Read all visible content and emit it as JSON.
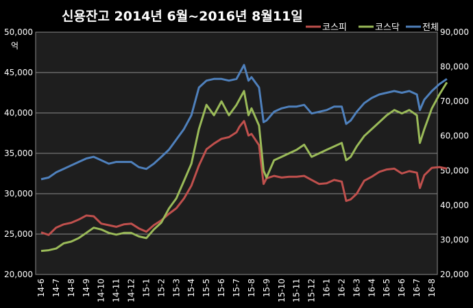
{
  "chart_data": {
    "type": "line",
    "title": "신용잔고 2014년 6월~2016년 8월11일",
    "left_axis": {
      "unit": "억",
      "range": [
        20000,
        50000
      ],
      "ticks": [
        "20,000",
        "25,000",
        "30,000",
        "35,000",
        "40,000",
        "45,000",
        "50,000"
      ]
    },
    "right_axis": {
      "range": [
        20000,
        90000
      ],
      "ticks": [
        "20,000",
        "30,000",
        "40,000",
        "50,000",
        "60,000",
        "70,000",
        "80,000",
        "90,000"
      ]
    },
    "x_ticks": [
      "14-6",
      "14-7",
      "14-8",
      "14-9",
      "14-10",
      "14-11",
      "14-12",
      "15-1",
      "15-2",
      "15-3",
      "15-4",
      "15-5",
      "15-6",
      "15-7",
      "15-8",
      "15-9",
      "15-10",
      "15-11",
      "15-12",
      "16-1",
      "16-2",
      "16-3",
      "16-4",
      "16-5",
      "16-6",
      "16-7",
      "16-8"
    ],
    "grid": true,
    "legend_position": "top-right",
    "series": [
      {
        "name": "코스피",
        "axis": "left",
        "color": "#c0504d",
        "points": [
          [
            0,
            25200
          ],
          [
            0.5,
            24900
          ],
          [
            1,
            25800
          ],
          [
            1.5,
            26200
          ],
          [
            2,
            26400
          ],
          [
            2.5,
            26800
          ],
          [
            3,
            27300
          ],
          [
            3.5,
            27200
          ],
          [
            4,
            26300
          ],
          [
            4.5,
            26100
          ],
          [
            5,
            25900
          ],
          [
            5.5,
            26200
          ],
          [
            6,
            26300
          ],
          [
            6.5,
            25700
          ],
          [
            7,
            25300
          ],
          [
            7.5,
            26100
          ],
          [
            8,
            26700
          ],
          [
            8.5,
            27500
          ],
          [
            9,
            28200
          ],
          [
            9.5,
            29400
          ],
          [
            10,
            31000
          ],
          [
            10.5,
            33500
          ],
          [
            11,
            35500
          ],
          [
            11.5,
            36200
          ],
          [
            12,
            36800
          ],
          [
            12.5,
            37000
          ],
          [
            13,
            37600
          ],
          [
            13.2,
            38300
          ],
          [
            13.5,
            39000
          ],
          [
            13.8,
            37200
          ],
          [
            14,
            37400
          ],
          [
            14.5,
            36000
          ],
          [
            14.8,
            31200
          ],
          [
            15,
            31900
          ],
          [
            15.5,
            32200
          ],
          [
            16,
            32000
          ],
          [
            16.5,
            32100
          ],
          [
            17,
            32100
          ],
          [
            17.5,
            32200
          ],
          [
            18,
            31700
          ],
          [
            18.5,
            31200
          ],
          [
            19,
            31300
          ],
          [
            19.5,
            31700
          ],
          [
            20,
            31500
          ],
          [
            20.3,
            29100
          ],
          [
            20.6,
            29300
          ],
          [
            21,
            30000
          ],
          [
            21.5,
            31600
          ],
          [
            22,
            32100
          ],
          [
            22.5,
            32700
          ],
          [
            23,
            33000
          ],
          [
            23.5,
            33100
          ],
          [
            24,
            32500
          ],
          [
            24.5,
            32800
          ],
          [
            25,
            32600
          ],
          [
            25.2,
            30700
          ],
          [
            25.5,
            32300
          ],
          [
            26,
            33200
          ],
          [
            26.5,
            33300
          ],
          [
            27,
            33100
          ]
        ]
      },
      {
        "name": "코스닥",
        "axis": "right",
        "color": "#9bbb59",
        "points": [
          [
            0,
            26800
          ],
          [
            0.5,
            27000
          ],
          [
            1,
            27500
          ],
          [
            1.5,
            29000
          ],
          [
            2,
            29500
          ],
          [
            2.5,
            30500
          ],
          [
            3,
            32000
          ],
          [
            3.5,
            33500
          ],
          [
            4,
            33000
          ],
          [
            4.5,
            32000
          ],
          [
            5,
            31500
          ],
          [
            5.5,
            32000
          ],
          [
            6,
            32000
          ],
          [
            6.5,
            31000
          ],
          [
            7,
            30500
          ],
          [
            7.5,
            33000
          ],
          [
            8,
            35000
          ],
          [
            8.5,
            39000
          ],
          [
            9,
            42000
          ],
          [
            9.5,
            47000
          ],
          [
            10,
            52000
          ],
          [
            10.5,
            62000
          ],
          [
            11,
            69000
          ],
          [
            11.5,
            66000
          ],
          [
            12,
            70000
          ],
          [
            12.5,
            66000
          ],
          [
            13,
            69000
          ],
          [
            13.5,
            73000
          ],
          [
            13.8,
            66000
          ],
          [
            14,
            68000
          ],
          [
            14.5,
            63000
          ],
          [
            14.8,
            50000
          ],
          [
            15,
            48000
          ],
          [
            15.5,
            53000
          ],
          [
            16,
            54000
          ],
          [
            16.5,
            55000
          ],
          [
            17,
            56000
          ],
          [
            17.5,
            57500
          ],
          [
            18,
            54000
          ],
          [
            18.5,
            55000
          ],
          [
            19,
            56000
          ],
          [
            19.5,
            57000
          ],
          [
            20,
            58000
          ],
          [
            20.3,
            53000
          ],
          [
            20.6,
            54000
          ],
          [
            21,
            57000
          ],
          [
            21.5,
            60000
          ],
          [
            22,
            62000
          ],
          [
            22.5,
            64000
          ],
          [
            23,
            66000
          ],
          [
            23.5,
            67500
          ],
          [
            24,
            66500
          ],
          [
            24.5,
            67500
          ],
          [
            25,
            66000
          ],
          [
            25.2,
            58000
          ],
          [
            25.5,
            62000
          ],
          [
            26,
            68000
          ],
          [
            26.5,
            72000
          ],
          [
            27,
            75500
          ]
        ]
      },
      {
        "name": "전체",
        "axis": "right",
        "color": "#4f81bd",
        "points": [
          [
            0,
            47500
          ],
          [
            0.5,
            48000
          ],
          [
            1,
            49500
          ],
          [
            1.5,
            50500
          ],
          [
            2,
            51500
          ],
          [
            2.5,
            52500
          ],
          [
            3,
            53500
          ],
          [
            3.5,
            54000
          ],
          [
            4,
            53000
          ],
          [
            4.5,
            52000
          ],
          [
            5,
            52500
          ],
          [
            5.5,
            52500
          ],
          [
            6,
            52500
          ],
          [
            6.5,
            51000
          ],
          [
            7,
            50500
          ],
          [
            7.5,
            52000
          ],
          [
            8,
            54000
          ],
          [
            8.5,
            56000
          ],
          [
            9,
            59000
          ],
          [
            9.5,
            62000
          ],
          [
            10,
            66000
          ],
          [
            10.5,
            74000
          ],
          [
            11,
            76000
          ],
          [
            11.5,
            76500
          ],
          [
            12,
            76500
          ],
          [
            12.5,
            76000
          ],
          [
            13,
            76500
          ],
          [
            13.5,
            80500
          ],
          [
            13.8,
            76000
          ],
          [
            14,
            77000
          ],
          [
            14.5,
            74000
          ],
          [
            14.8,
            64000
          ],
          [
            15,
            64500
          ],
          [
            15.5,
            67000
          ],
          [
            16,
            68000
          ],
          [
            16.5,
            68500
          ],
          [
            17,
            68500
          ],
          [
            17.5,
            69000
          ],
          [
            18,
            66500
          ],
          [
            18.5,
            67000
          ],
          [
            19,
            67500
          ],
          [
            19.5,
            68500
          ],
          [
            20,
            68500
          ],
          [
            20.3,
            63500
          ],
          [
            20.6,
            64500
          ],
          [
            21,
            67000
          ],
          [
            21.5,
            69500
          ],
          [
            22,
            71000
          ],
          [
            22.5,
            72000
          ],
          [
            23,
            72500
          ],
          [
            23.5,
            73000
          ],
          [
            24,
            72500
          ],
          [
            24.5,
            73000
          ],
          [
            25,
            72000
          ],
          [
            25.2,
            67500
          ],
          [
            25.5,
            70500
          ],
          [
            26,
            73000
          ],
          [
            26.5,
            75000
          ],
          [
            27,
            76500
          ]
        ]
      }
    ]
  }
}
